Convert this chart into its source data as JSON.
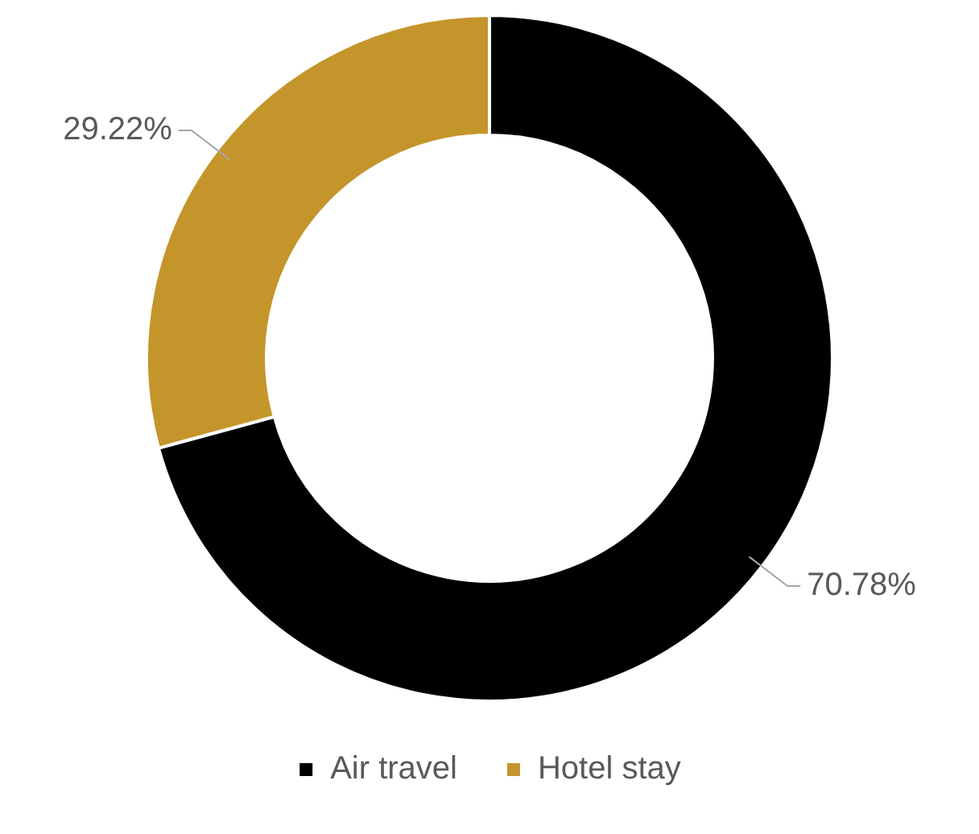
{
  "chart_data": {
    "type": "donut",
    "categories": [
      "Air travel",
      "Hotel stay"
    ],
    "values": [
      70.78,
      29.22
    ],
    "colors": [
      "#000000",
      "#c4952b"
    ],
    "value_labels": [
      "70.78%",
      "29.22%"
    ],
    "legend": "bottom"
  }
}
